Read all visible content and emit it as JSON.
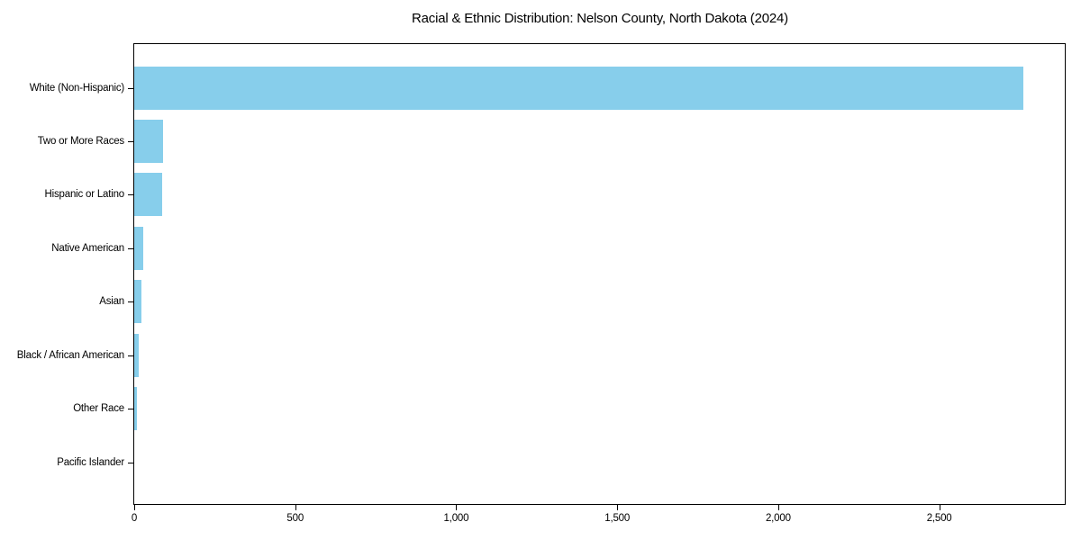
{
  "chart_data": {
    "type": "bar",
    "orientation": "horizontal",
    "title": "Racial & Ethnic Distribution: Nelson County, North Dakota (2024)",
    "categories": [
      "White (Non-Hispanic)",
      "Two or More Races",
      "Hispanic or Latino",
      "Native American",
      "Asian",
      "Black / African American",
      "Other Race",
      "Pacific Islander"
    ],
    "values": [
      2760,
      90,
      86,
      29,
      21,
      13,
      7,
      0
    ],
    "xlabel": "",
    "ylabel": "",
    "xlim": [
      0,
      2890
    ],
    "xticks": [
      0,
      500,
      1000,
      1500,
      2000,
      2500
    ],
    "xtick_labels": [
      "0",
      "500",
      "1,000",
      "1,500",
      "2,000",
      "2,500"
    ],
    "bar_color": "#87CEEB",
    "grid": false,
    "legend": null
  }
}
